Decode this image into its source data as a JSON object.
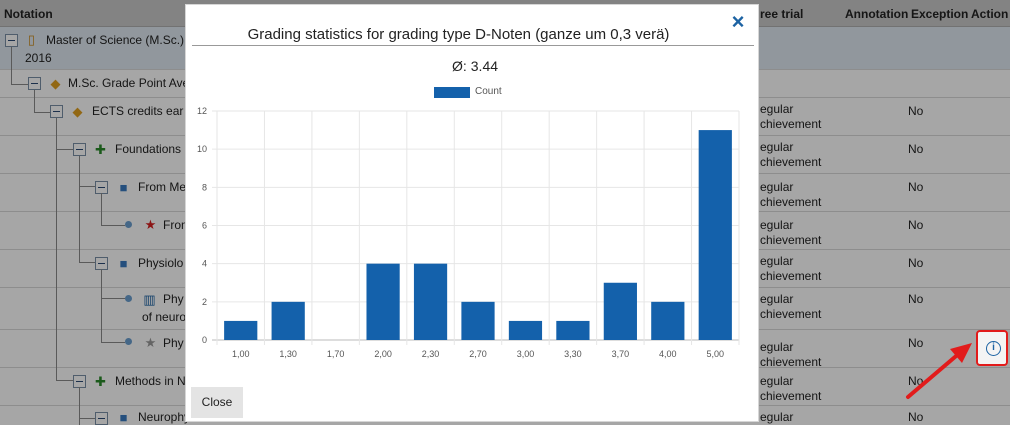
{
  "table": {
    "headers": {
      "notation": "Notation",
      "free_trial": "ree trial",
      "annotation": "Annotation",
      "exception": "Exception",
      "action": "Action"
    },
    "rows": [
      {
        "label": "Master of Science (M.Sc.)",
        "label2": "2016"
      },
      {
        "label": "M.Sc. Grade Point Ave"
      },
      {
        "label": "ECTS credits ear",
        "free_trial_1": "egular",
        "free_trial_2": "chievement",
        "exception": "No"
      },
      {
        "label": "Foundations",
        "free_trial_1": "egular",
        "free_trial_2": "chievement",
        "exception": "No"
      },
      {
        "label": "From Me",
        "free_trial_1": "egular",
        "free_trial_2": "chievement",
        "exception": "No"
      },
      {
        "label": "From",
        "free_trial_1": "egular",
        "free_trial_2": "chievement",
        "exception": "No"
      },
      {
        "label": "Physiolo",
        "free_trial_1": "egular",
        "free_trial_2": "chievement",
        "exception": "No"
      },
      {
        "label": "Phy",
        "label2": "of neuro",
        "free_trial_1": "egular",
        "free_trial_2": "chievement",
        "exception": "No"
      },
      {
        "label": "Phy",
        "free_trial_1": "egular",
        "free_trial_2": "chievement",
        "exception": "No"
      },
      {
        "label": "Methods in N",
        "free_trial_1": "egular",
        "free_trial_2": "chievement",
        "exception": "No"
      },
      {
        "label": "Neurophy",
        "free_trial_1": "egular",
        "exception": "No"
      }
    ]
  },
  "modal": {
    "title": "Grading statistics for grading type D-Noten (ganze um 0,3 verä)",
    "close_icon": "×",
    "average_label": "Ø:",
    "average_value": "3.44",
    "close_button": "Close",
    "legend_label": "Count",
    "legend_color": "#1461ab"
  },
  "info_icon": "i",
  "chart_data": {
    "type": "bar",
    "categories": [
      "1,00",
      "1,30",
      "1,70",
      "2,00",
      "2,30",
      "2,70",
      "3,00",
      "3,30",
      "3,70",
      "4,00",
      "5,00"
    ],
    "series": [
      {
        "name": "Count",
        "values": [
          1,
          2,
          0,
          4,
          4,
          2,
          1,
          1,
          3,
          2,
          11
        ]
      }
    ],
    "ylim": [
      0,
      12
    ],
    "yticks": [
      "0",
      "2",
      "4",
      "6",
      "8",
      "10",
      "12"
    ],
    "grid": true,
    "legend": "top-center",
    "color": "#1461ab"
  }
}
